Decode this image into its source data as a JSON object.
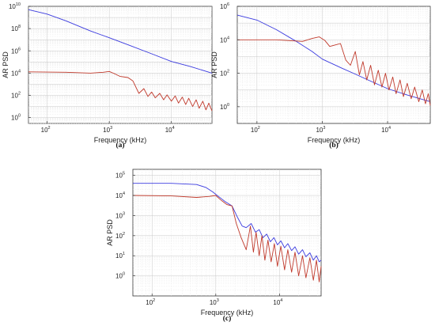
{
  "chart_data": [
    {
      "type": "line",
      "panel_label": "(a)",
      "xlabel": "Frequency (kHz)",
      "ylabel": "AR PSD",
      "xscale": "log",
      "yscale": "log",
      "xlim": [
        50,
        45000
      ],
      "ylim": [
        0.3,
        10000000000.0
      ],
      "xticks": [
        100,
        1000,
        10000
      ],
      "xtick_labels": [
        {
          "base": "10",
          "exp": "2"
        },
        {
          "base": "10",
          "exp": "3"
        },
        {
          "base": "10",
          "exp": "4"
        }
      ],
      "yticks": [
        1,
        100,
        10000,
        1000000,
        100000000,
        10000000000
      ],
      "ytick_labels": [
        {
          "base": "10",
          "exp": "0"
        },
        {
          "base": "10",
          "exp": "2"
        },
        {
          "base": "10",
          "exp": "4"
        },
        {
          "base": "10",
          "exp": "6"
        },
        {
          "base": "10",
          "exp": "8"
        },
        {
          "base": "10",
          "exp": "10"
        }
      ],
      "grid": true,
      "series": [
        {
          "color": "#3a3adf",
          "points": [
            [
              50,
              5000000000
            ],
            [
              100,
              2000000000
            ],
            [
              200,
              500000000
            ],
            [
              500,
              60000000
            ],
            [
              1000,
              15000000
            ],
            [
              2000,
              3500000
            ],
            [
              5000,
              500000
            ],
            [
              10000,
              110000
            ],
            [
              20000,
              40000
            ],
            [
              45000,
              10000
            ]
          ]
        },
        {
          "color": "#c0392b",
          "points": [
            [
              50,
              13000
            ],
            [
              200,
              12000
            ],
            [
              500,
              10000
            ],
            [
              800,
              12000
            ],
            [
              1000,
              14000
            ],
            [
              1200,
              9000
            ],
            [
              1500,
              5000
            ],
            [
              2000,
              4000
            ],
            [
              2400,
              2000
            ],
            [
              3000,
              150
            ],
            [
              3600,
              400
            ],
            [
              4200,
              80
            ],
            [
              4800,
              200
            ],
            [
              5500,
              60
            ],
            [
              6500,
              150
            ],
            [
              7500,
              40
            ],
            [
              8500,
              110
            ],
            [
              10000,
              30
            ],
            [
              11500,
              90
            ],
            [
              13000,
              20
            ],
            [
              15000,
              70
            ],
            [
              17000,
              15
            ],
            [
              19000,
              55
            ],
            [
              22000,
              10
            ],
            [
              25000,
              40
            ],
            [
              28000,
              7
            ],
            [
              32000,
              30
            ],
            [
              36000,
              5
            ],
            [
              40000,
              20
            ],
            [
              45000,
              4
            ]
          ]
        }
      ]
    },
    {
      "type": "line",
      "panel_label": "(b)",
      "xlabel": "Frequency (kHz)",
      "ylabel": "AR PSD",
      "xscale": "log",
      "yscale": "log",
      "xlim": [
        50,
        45000
      ],
      "ylim": [
        0.1,
        1000000
      ],
      "xticks": [
        100,
        1000,
        10000
      ],
      "xtick_labels": [
        {
          "base": "10",
          "exp": "2"
        },
        {
          "base": "10",
          "exp": "3"
        },
        {
          "base": "10",
          "exp": "4"
        }
      ],
      "yticks": [
        1,
        100,
        10000,
        1000000
      ],
      "ytick_labels": [
        {
          "base": "10",
          "exp": "0"
        },
        {
          "base": "10",
          "exp": "2"
        },
        {
          "base": "10",
          "exp": "4"
        },
        {
          "base": "10",
          "exp": "6"
        }
      ],
      "grid": true,
      "series": [
        {
          "color": "#3a3adf",
          "points": [
            [
              50,
              300000
            ],
            [
              100,
              150000
            ],
            [
              200,
              40000
            ],
            [
              400,
              8000
            ],
            [
              700,
              2000
            ],
            [
              1000,
              700
            ],
            [
              2000,
              200
            ],
            [
              3000,
              100
            ],
            [
              5000,
              40
            ],
            [
              10000,
              12
            ],
            [
              20000,
              5
            ],
            [
              45000,
              2
            ]
          ]
        },
        {
          "color": "#c0392b",
          "points": [
            [
              50,
              10000
            ],
            [
              200,
              10000
            ],
            [
              500,
              8000
            ],
            [
              700,
              12000
            ],
            [
              900,
              15000
            ],
            [
              1100,
              9000
            ],
            [
              1300,
              4000
            ],
            [
              1600,
              5000
            ],
            [
              1900,
              6000
            ],
            [
              2300,
              600
            ],
            [
              2700,
              300
            ],
            [
              3200,
              2000
            ],
            [
              3700,
              80
            ],
            [
              4200,
              500
            ],
            [
              4800,
              40
            ],
            [
              5500,
              300
            ],
            [
              6300,
              20
            ],
            [
              7200,
              150
            ],
            [
              8200,
              15
            ],
            [
              9300,
              100
            ],
            [
              10500,
              10
            ],
            [
              12000,
              60
            ],
            [
              13500,
              6
            ],
            [
              15500,
              40
            ],
            [
              17500,
              4
            ],
            [
              20000,
              25
            ],
            [
              23000,
              3
            ],
            [
              26000,
              15
            ],
            [
              30000,
              2
            ],
            [
              34000,
              10
            ],
            [
              38000,
              1.5
            ],
            [
              42000,
              6
            ],
            [
              45000,
              1.2
            ]
          ]
        }
      ]
    },
    {
      "type": "line",
      "panel_label": "(c)",
      "xlabel": "Frequency (kHz)",
      "ylabel": "AR PSD",
      "xscale": "log",
      "yscale": "log",
      "xlim": [
        50,
        45000
      ],
      "ylim": [
        0.1,
        200000
      ],
      "xticks": [
        100,
        1000,
        10000
      ],
      "xtick_labels": [
        {
          "base": "10",
          "exp": "2"
        },
        {
          "base": "10",
          "exp": "3"
        },
        {
          "base": "10",
          "exp": "4"
        }
      ],
      "yticks": [
        1,
        10,
        100,
        1000,
        10000,
        100000
      ],
      "ytick_labels": [
        {
          "base": "10",
          "exp": "0"
        },
        {
          "base": "10",
          "exp": "1"
        },
        {
          "base": "10",
          "exp": "2"
        },
        {
          "base": "10",
          "exp": "3"
        },
        {
          "base": "10",
          "exp": "4"
        },
        {
          "base": "10",
          "exp": "5"
        }
      ],
      "grid": true,
      "series": [
        {
          "color": "#3a3adf",
          "points": [
            [
              50,
              40000
            ],
            [
              200,
              40000
            ],
            [
              500,
              35000
            ],
            [
              700,
              25000
            ],
            [
              900,
              15000
            ],
            [
              1100,
              9000
            ],
            [
              1400,
              5000
            ],
            [
              1800,
              3000
            ],
            [
              2200,
              800
            ],
            [
              2600,
              300
            ],
            [
              3000,
              250
            ],
            [
              3600,
              400
            ],
            [
              4200,
              150
            ],
            [
              4800,
              200
            ],
            [
              5500,
              80
            ],
            [
              6300,
              120
            ],
            [
              7200,
              50
            ],
            [
              8200,
              80
            ],
            [
              9300,
              35
            ],
            [
              10500,
              55
            ],
            [
              12000,
              25
            ],
            [
              13500,
              40
            ],
            [
              15500,
              18
            ],
            [
              17500,
              28
            ],
            [
              20000,
              12
            ],
            [
              23000,
              20
            ],
            [
              26000,
              9
            ],
            [
              30000,
              14
            ],
            [
              34000,
              6
            ],
            [
              38000,
              10
            ],
            [
              42000,
              5
            ],
            [
              45000,
              6
            ]
          ]
        },
        {
          "color": "#c0392b",
          "points": [
            [
              50,
              10000
            ],
            [
              200,
              9500
            ],
            [
              500,
              8000
            ],
            [
              800,
              9000
            ],
            [
              1000,
              10000
            ],
            [
              1200,
              6000
            ],
            [
              1500,
              3500
            ],
            [
              1800,
              3000
            ],
            [
              2100,
              400
            ],
            [
              2500,
              80
            ],
            [
              3000,
              20
            ],
            [
              3500,
              300
            ],
            [
              3900,
              15
            ],
            [
              4300,
              150
            ],
            [
              4800,
              10
            ],
            [
              5300,
              100
            ],
            [
              5900,
              6
            ],
            [
              6600,
              60
            ],
            [
              7400,
              5
            ],
            [
              8300,
              40
            ],
            [
              9300,
              3
            ],
            [
              10500,
              30
            ],
            [
              12000,
              2
            ],
            [
              13500,
              20
            ],
            [
              15500,
              1.5
            ],
            [
              17500,
              15
            ],
            [
              20000,
              1
            ],
            [
              23000,
              10
            ],
            [
              26000,
              0.8
            ],
            [
              30000,
              8
            ],
            [
              34000,
              0.6
            ],
            [
              38000,
              6
            ],
            [
              42000,
              0.5
            ],
            [
              45000,
              3
            ]
          ]
        }
      ]
    }
  ]
}
